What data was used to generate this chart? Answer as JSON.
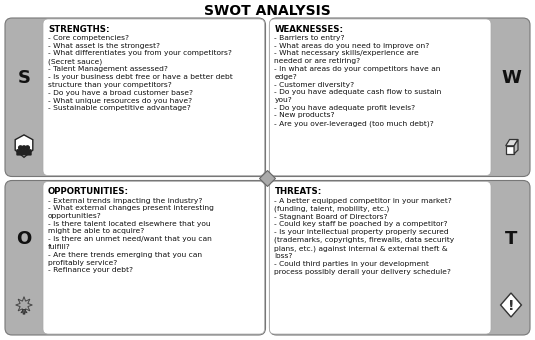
{
  "title": "SWOT ANALYSIS",
  "quadrants": [
    {
      "label": "S",
      "header": "STRENGTHS:",
      "label_side": "left",
      "text": "- Core competencies?\n- What asset is the strongest?\n- What differentiates you from your competitors?\n(Secret sauce)\n- Talent Management assessed?\n- Is your business debt free or have a better debt\nstructure than your competitors?\n- Do you have a broad customer base?\n- What unique resources do you have?\n- Sustainable competitive advantage?"
    },
    {
      "label": "W",
      "header": "WEAKNESSES:",
      "label_side": "right",
      "text": "- Barriers to entry?\n- What areas do you need to improve on?\n- What necessary skills/experience are\nneeded or are retiring?\n- In what areas do your competitors have an\nedge?\n- Customer diversity?\n- Do you have adequate cash flow to sustain\nyou?\n- Do you have adequate profit levels?\n- New products?\n- Are you over-leveraged (too much debt)?"
    },
    {
      "label": "O",
      "header": "OPPORTUNITIES:",
      "label_side": "left",
      "text": "- External trends impacting the industry?\n- What external changes present interesting\nopportunities?\n- Is there talent located elsewhere that you\nmight be able to acquire?\n- Is there an unmet need/want that you can\nfulfill?\n- Are there trends emerging that you can\nprofitably service?\n- Refinance your debt?"
    },
    {
      "label": "T",
      "header": "THREATS:",
      "label_side": "right",
      "text": "- A better equipped competitor in your market?\n(funding, talent, mobility, etc.)\n- Stagnant Board of Directors?\n- Could key staff be poached by a competitor?\n- Is your intellectual property properly secured\n(trademarks, copyrights, firewalls, data security\nplans, etc.) against internal & external theft &\nloss?\n- Could third parties in your development\nprocess possibly derail your delivery schedule?"
    }
  ],
  "gray_color": "#b0b0b0",
  "white_color": "#ffffff",
  "border_color": "#888888",
  "text_color": "#111111"
}
